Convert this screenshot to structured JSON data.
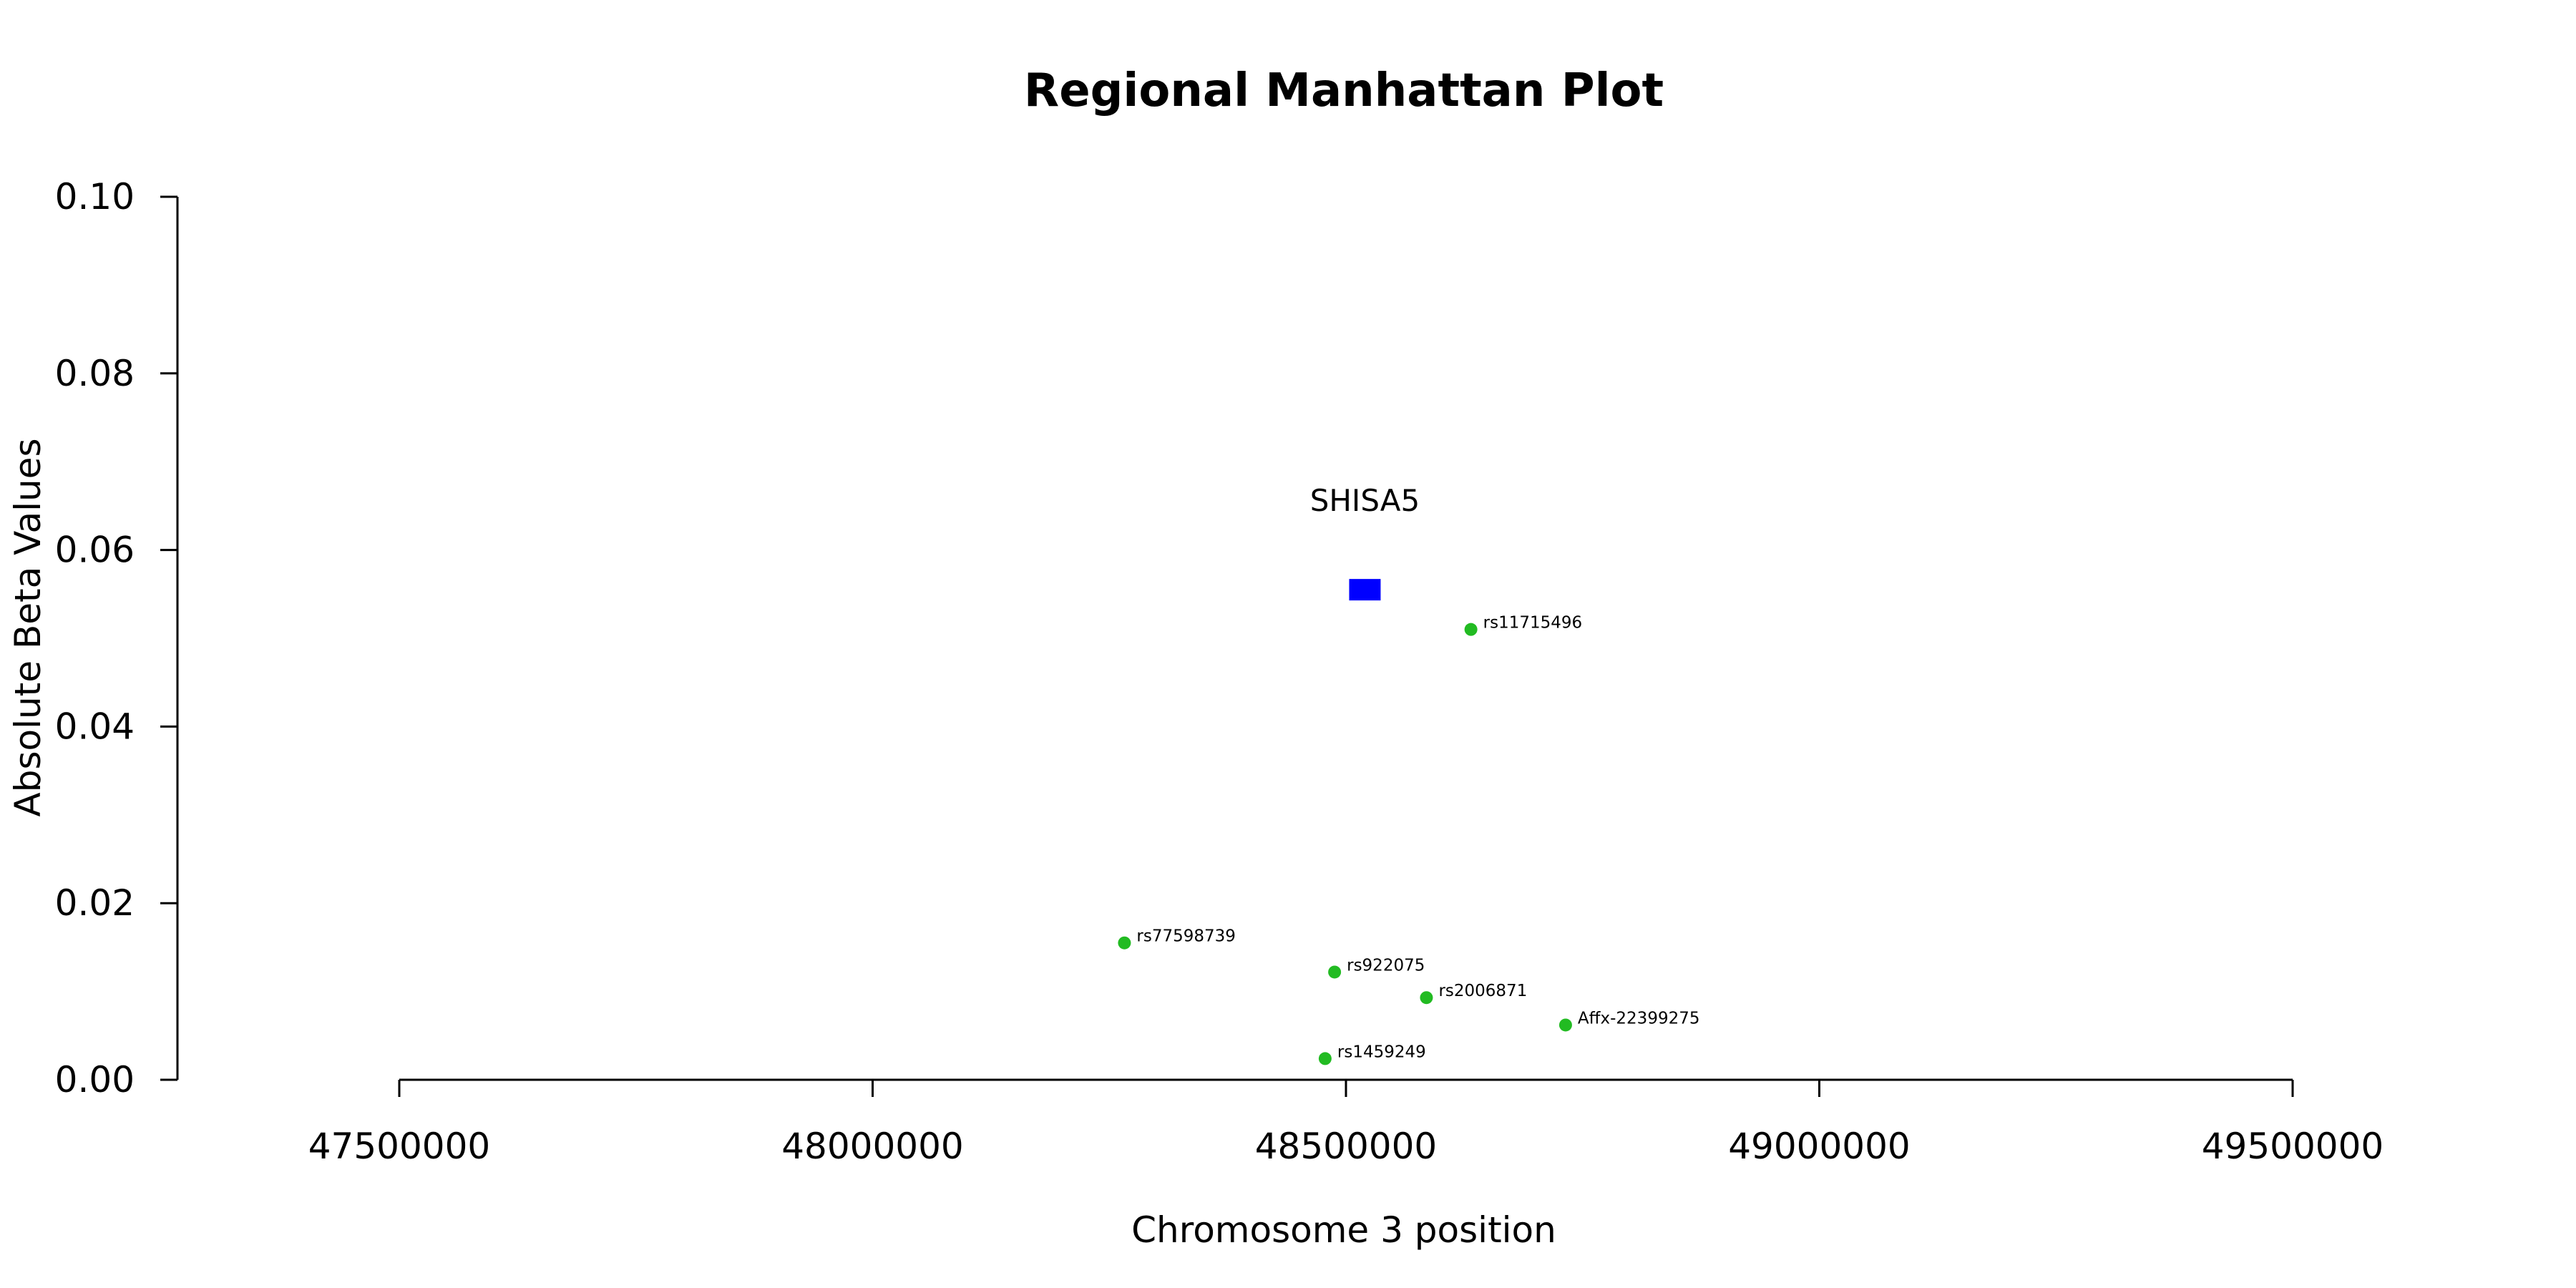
{
  "chart_data": {
    "type": "scatter",
    "title": "Regional Manhattan Plot",
    "xlabel": "Chromosome 3 position",
    "ylabel": "Absolute Beta Values",
    "xlim": [
      47500000,
      49500000
    ],
    "ylim": [
      0,
      0.1
    ],
    "xticks": [
      47500000,
      48000000,
      48500000,
      49000000,
      49500000
    ],
    "xtick_labels": [
      "47500000",
      "48000000",
      "48500000",
      "49000000",
      "49500000"
    ],
    "yticks": [
      0,
      0.02,
      0.04,
      0.06,
      0.08,
      0.1
    ],
    "ytick_labels": [
      "0.00",
      "0.02",
      "0.04",
      "0.06",
      "0.08",
      "0.10"
    ],
    "grid": false,
    "gene": {
      "label": "SHISA5",
      "x": 48520000,
      "y": 0.0555,
      "color": "#0000ff"
    },
    "snp_color": "#22bb22",
    "snps": [
      {
        "label": "rs11715496",
        "x": 48632000,
        "y": 0.051
      },
      {
        "label": "rs77598739",
        "x": 48266000,
        "y": 0.0155
      },
      {
        "label": "rs922075",
        "x": 48488000,
        "y": 0.0122
      },
      {
        "label": "rs2006871",
        "x": 48585000,
        "y": 0.0093
      },
      {
        "label": "Affx-22399275",
        "x": 48732000,
        "y": 0.0062
      },
      {
        "label": "rs1459249",
        "x": 48478000,
        "y": 0.0024
      }
    ]
  }
}
